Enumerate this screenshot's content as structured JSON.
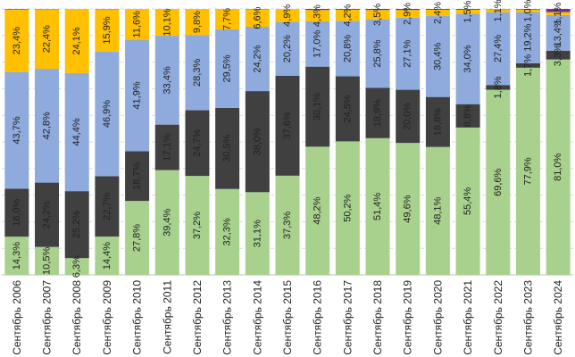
{
  "chart_data": {
    "type": "bar",
    "stacked": true,
    "normalized": true,
    "title": "",
    "xlabel": "",
    "ylabel": "",
    "ylim": [
      0,
      100
    ],
    "grid": true,
    "legend": "none",
    "categories": [
      "Сентябрь 2006",
      "Сентябрь 2007",
      "Сентябрь 2008",
      "Сентябрь 2009",
      "Сентябрь 2010",
      "Сентябрь 2011",
      "Сентябрь 2012",
      "Сентябрь 2013",
      "Сентябрь 2014",
      "Сентябрь 2015",
      "Сентябрь 2016",
      "Сентябрь 2017",
      "Сентябрь 2018",
      "Сентябрь 2019",
      "Сентябрь 2020",
      "Сентябрь 2021",
      "Сентябрь 2022",
      "Сентябрь 2023",
      "Сентябрь 2024"
    ],
    "series": [
      {
        "color": "#a9d18e",
        "values": [
          14.3,
          10.5,
          6.3,
          14.4,
          27.8,
          39.4,
          37.2,
          32.3,
          31.1,
          37.3,
          48.2,
          50.2,
          51.4,
          49.6,
          48.1,
          55.4,
          69.6,
          77.9,
          81.0
        ],
        "labels": [
          "14,3%",
          "10,5%",
          "6,3%",
          "14,4%",
          "27,8%",
          "39,4%",
          "37,2%",
          "32,3%",
          "31,1%",
          "37,3%",
          "48,2%",
          "50,2%",
          "51,4%",
          "49,6%",
          "48,1%",
          "55,4%",
          "69,6%",
          "77,9%",
          "81,0%"
        ]
      },
      {
        "color": "#404040",
        "values": [
          18.0,
          24.2,
          25.2,
          22.7,
          18.7,
          17.1,
          24.7,
          30.5,
          38.0,
          37.6,
          30.1,
          24.5,
          18.9,
          20.0,
          18.8,
          8.8,
          1.8,
          1.7,
          3.3
        ],
        "labels": [
          "18,0%",
          "24,2%",
          "25,2%",
          "22,7%",
          "18,7%",
          "17,1%",
          "24,7%",
          "30,5%",
          "38,0%",
          "37,6%",
          "30,1%",
          "24,5%",
          "18,9%",
          "20,0%",
          "18,8%",
          "8,8%",
          "1,8%",
          "1,7%",
          "3,3%"
        ]
      },
      {
        "color": "#8faadc",
        "values": [
          43.7,
          42.8,
          44.4,
          46.9,
          41.9,
          33.4,
          28.3,
          29.5,
          24.2,
          20.2,
          17.0,
          20.8,
          25.8,
          27.1,
          30.4,
          34.0,
          27.4,
          19.2,
          13.4
        ],
        "labels": [
          "43,7%",
          "42,8%",
          "44,4%",
          "46,9%",
          "41,9%",
          "33,4%",
          "28,3%",
          "29,5%",
          "24,2%",
          "20,2%",
          "17,0%",
          "20,8%",
          "25,8%",
          "27,1%",
          "30,4%",
          "34,0%",
          "27,4%",
          "19,2%",
          "13,4%"
        ]
      },
      {
        "color": "#ffc000",
        "values": [
          23.4,
          22.4,
          24.1,
          15.9,
          11.6,
          10.1,
          9.8,
          7.7,
          6.6,
          4.9,
          4.3,
          4.2,
          3.5,
          2.9,
          2.4,
          1.5,
          1.1,
          1.0,
          1.1
        ],
        "labels": [
          "23,4%",
          "22,4%",
          "24,1%",
          "15,9%",
          "11,6%",
          "10,1%",
          "9,8%",
          "7,7%",
          "6,6%",
          "4,9%",
          "4,3%",
          "4,2%",
          "3,5%",
          "2,9%",
          "2,4%",
          "1,5%",
          "1,1%",
          "1,0%",
          "1,1%"
        ]
      },
      {
        "color": "#7030a0",
        "values": [
          0.2,
          0.1,
          0.0,
          0.1,
          0.0,
          0.0,
          0.0,
          0.0,
          0.1,
          0.0,
          0.4,
          0.3,
          0.4,
          0.4,
          0.3,
          0.3,
          0.1,
          0.2,
          1.2
        ],
        "labels": []
      }
    ]
  }
}
